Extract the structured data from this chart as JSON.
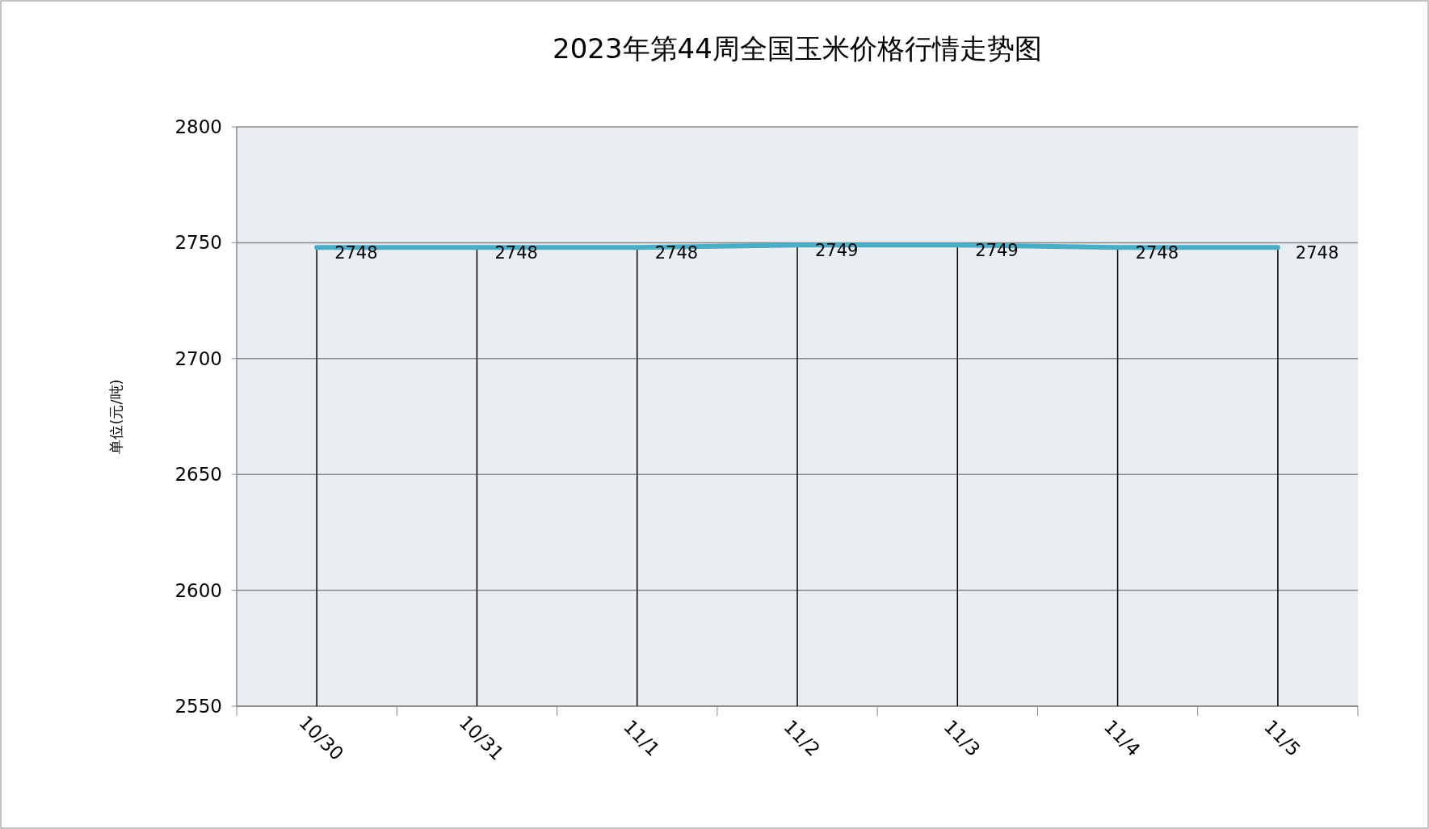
{
  "chart_data": {
    "type": "line",
    "title": "2023年第44周全国玉米价格行情走势图",
    "ylabel": "单位(元/吨)",
    "categories": [
      "10/30",
      "10/31",
      "11/1",
      "11/2",
      "11/3",
      "11/4",
      "11/5"
    ],
    "series": [
      {
        "color": "#4bacc6",
        "values": [
          2748,
          2748,
          2748,
          2749,
          2749,
          2748,
          2748
        ]
      }
    ],
    "ylim": [
      2550,
      2800
    ],
    "yticks": [
      2550,
      2600,
      2650,
      2700,
      2750,
      2800
    ],
    "grid": true,
    "data_labels": true,
    "marker": "none",
    "line_style": "solid"
  }
}
